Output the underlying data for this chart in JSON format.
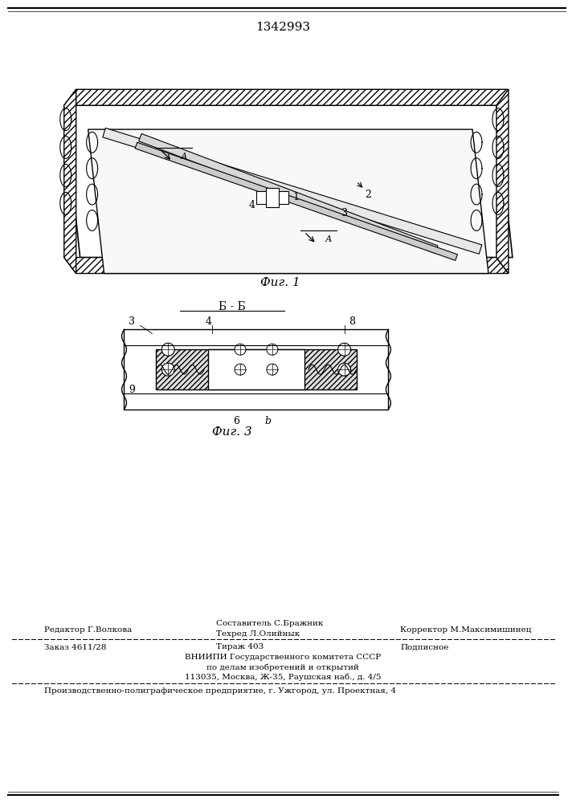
{
  "patent_number": "1342993",
  "fig1_caption": "Фиг. 1",
  "fig3_caption": "Фиг. 3",
  "section_label": "Б - Б",
  "editor_line": "Редактор Г.Волкова",
  "compositor_line": "Составитель С.Бражник",
  "techred_line": "Техред Л.Олийнык",
  "corrector_line": "Корректор М.Максимишинец",
  "order_line": "Заказ 4611/28",
  "tirage_line": "Тираж 403",
  "subscription_line": "Подписное",
  "vniip_line1": "ВНИИПИ Государственного комитета СССР",
  "vniip_line2": "по делам изобретений и открытий",
  "vniip_line3": "113035, Москва, Ж-35, Раушская наб., д. 4/5",
  "production_line": "Производственно-полиграфическое предприятие, г. Ужгород, ул. Проектная, 4",
  "bg_color": "#ffffff",
  "line_color": "#000000"
}
